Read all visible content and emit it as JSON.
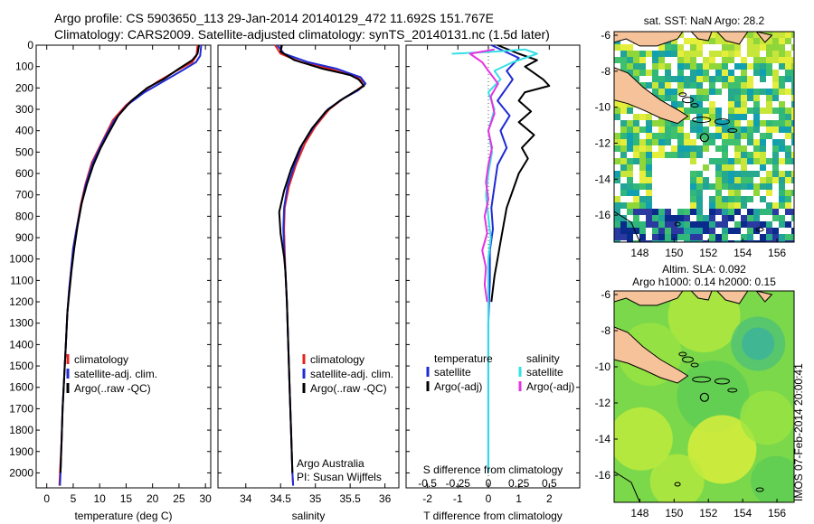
{
  "header": {
    "line1": "Argo profile: CS 5903650_113 29-Jan-2014 20140129_472 11.692S 151.767E",
    "line2": "Climatology: CARS2009. Satellite-adjusted climatology: synTS_20140131.nc (1.5d later)"
  },
  "stamp": "IMOS 07-Feb-2014 20:00:41",
  "colors": {
    "clim": "#e8231f",
    "sat": "#1f2bd6",
    "argo": "#000000",
    "sal_sat": "#35e0e6",
    "sal_argo": "#e633e0",
    "land": "#f5c29a",
    "sea_base": "#2fb87a"
  },
  "chart_data": [
    {
      "type": "line",
      "xlabel": "temperature (deg C)",
      "ylabel": "",
      "xlim": [
        -2,
        31
      ],
      "ylim": [
        2070,
        0
      ],
      "xticks": [
        "0",
        "5",
        "10",
        "15",
        "20",
        "25",
        "30"
      ],
      "yticks": [
        "0",
        "100",
        "200",
        "300",
        "400",
        "500",
        "600",
        "700",
        "800",
        "900",
        "1000",
        "1100",
        "1200",
        "1300",
        "1400",
        "1500",
        "1600",
        "1700",
        "1800",
        "1900",
        "2000"
      ],
      "legend": [
        "climatology",
        "satellite-adj. clim.",
        "Argo(..raw -QC)"
      ],
      "series": [
        {
          "name": "climatology",
          "color": "#e8231f",
          "points": [
            [
              28.5,
              0
            ],
            [
              28.3,
              50
            ],
            [
              27.5,
              80
            ],
            [
              24.5,
              120
            ],
            [
              21,
              170
            ],
            [
              18,
              220
            ],
            [
              15,
              280
            ],
            [
              12.5,
              350
            ],
            [
              10.5,
              450
            ],
            [
              8.5,
              550
            ],
            [
              7.3,
              650
            ],
            [
              6.4,
              750
            ],
            [
              5.7,
              850
            ],
            [
              5.0,
              950
            ],
            [
              4.6,
              1050
            ],
            [
              4.2,
              1150
            ],
            [
              3.9,
              1250
            ],
            [
              3.6,
              1400
            ],
            [
              3.3,
              1550
            ],
            [
              3.0,
              1700
            ],
            [
              2.8,
              1850
            ],
            [
              2.5,
              2000
            ],
            [
              2.4,
              2060
            ]
          ]
        },
        {
          "name": "satellite-adj. clim.",
          "color": "#1f2bd6",
          "points": [
            [
              29.2,
              0
            ],
            [
              29,
              50
            ],
            [
              28.2,
              80
            ],
            [
              25.5,
              120
            ],
            [
              22,
              170
            ],
            [
              18.5,
              220
            ],
            [
              15.2,
              280
            ],
            [
              12.8,
              350
            ],
            [
              10.6,
              450
            ],
            [
              8.7,
              550
            ],
            [
              7.4,
              650
            ],
            [
              6.5,
              750
            ],
            [
              5.7,
              850
            ],
            [
              5.0,
              950
            ],
            [
              4.6,
              1050
            ],
            [
              4.2,
              1150
            ],
            [
              3.9,
              1250
            ],
            [
              3.6,
              1400
            ],
            [
              3.3,
              1550
            ],
            [
              3.0,
              1700
            ],
            [
              2.8,
              1850
            ],
            [
              2.6,
              2000
            ],
            [
              2.5,
              2060
            ]
          ]
        },
        {
          "name": "Argo(..raw -QC)",
          "color": "#000000",
          "points": [
            [
              28.8,
              0
            ],
            [
              28.5,
              40
            ],
            [
              27.5,
              70
            ],
            [
              25,
              110
            ],
            [
              22,
              160
            ],
            [
              19,
              200
            ],
            [
              16,
              260
            ],
            [
              13.5,
              330
            ],
            [
              11.5,
              420
            ],
            [
              10.2,
              480
            ],
            [
              8.8,
              560
            ],
            [
              7.6,
              650
            ],
            [
              6.6,
              740
            ],
            [
              5.8,
              850
            ],
            [
              5.2,
              950
            ],
            [
              4.7,
              1050
            ],
            [
              4.3,
              1150
            ],
            [
              3.9,
              1250
            ],
            [
              3.6,
              1400
            ],
            [
              3.3,
              1550
            ],
            [
              3.0,
              1700
            ],
            [
              2.8,
              1850
            ],
            [
              2.6,
              2000
            ]
          ]
        }
      ]
    },
    {
      "type": "line",
      "xlabel": "salinity",
      "xlim": [
        33.6,
        36.2
      ],
      "ylim": [
        2070,
        0
      ],
      "xticks": [
        "34",
        "34.5",
        "35",
        "35.5",
        "36"
      ],
      "legend": [
        "climatology",
        "satellite-adj. clim.",
        "Argo(..raw -QC)"
      ],
      "annotation": [
        "Argo Australia",
        "PI: Susan Wijffels"
      ],
      "series": [
        {
          "name": "climatology",
          "color": "#e8231f",
          "points": [
            [
              34.42,
              0
            ],
            [
              34.5,
              40
            ],
            [
              34.8,
              80
            ],
            [
              35.2,
              110
            ],
            [
              35.6,
              150
            ],
            [
              35.72,
              180
            ],
            [
              35.6,
              210
            ],
            [
              35.4,
              250
            ],
            [
              35.2,
              300
            ],
            [
              35.0,
              380
            ],
            [
              34.85,
              460
            ],
            [
              34.72,
              560
            ],
            [
              34.62,
              660
            ],
            [
              34.56,
              760
            ],
            [
              34.55,
              860
            ],
            [
              34.56,
              960
            ],
            [
              34.57,
              1060
            ],
            [
              34.59,
              1200
            ],
            [
              34.61,
              1400
            ],
            [
              34.63,
              1600
            ],
            [
              34.65,
              1800
            ],
            [
              34.67,
              2000
            ],
            [
              34.68,
              2060
            ]
          ]
        },
        {
          "name": "satellite-adj. clim.",
          "color": "#1f2bd6",
          "points": [
            [
              34.45,
              0
            ],
            [
              34.55,
              40
            ],
            [
              34.9,
              80
            ],
            [
              35.3,
              110
            ],
            [
              35.65,
              150
            ],
            [
              35.72,
              180
            ],
            [
              35.62,
              210
            ],
            [
              35.4,
              250
            ],
            [
              35.18,
              300
            ],
            [
              34.98,
              380
            ],
            [
              34.82,
              460
            ],
            [
              34.7,
              560
            ],
            [
              34.6,
              660
            ],
            [
              34.55,
              760
            ],
            [
              34.54,
              860
            ],
            [
              34.55,
              960
            ],
            [
              34.57,
              1060
            ],
            [
              34.59,
              1200
            ],
            [
              34.61,
              1400
            ],
            [
              34.63,
              1600
            ],
            [
              34.65,
              1800
            ],
            [
              34.67,
              2000
            ],
            [
              34.68,
              2060
            ]
          ]
        },
        {
          "name": "Argo(..raw -QC)",
          "color": "#000000",
          "points": [
            [
              34.52,
              0
            ],
            [
              34.5,
              30
            ],
            [
              34.7,
              70
            ],
            [
              35.1,
              110
            ],
            [
              35.5,
              140
            ],
            [
              35.62,
              160
            ],
            [
              35.7,
              190
            ],
            [
              35.55,
              220
            ],
            [
              35.35,
              260
            ],
            [
              35.15,
              310
            ],
            [
              34.95,
              390
            ],
            [
              34.78,
              480
            ],
            [
              34.65,
              580
            ],
            [
              34.55,
              680
            ],
            [
              34.48,
              780
            ],
            [
              34.5,
              880
            ],
            [
              34.55,
              990
            ],
            [
              34.57,
              1060
            ],
            [
              34.59,
              1200
            ],
            [
              34.61,
              1400
            ],
            [
              34.63,
              1600
            ],
            [
              34.65,
              1800
            ],
            [
              34.67,
              2000
            ]
          ]
        }
      ]
    },
    {
      "type": "line",
      "xlabel": "T difference from climatology",
      "xlabel2": "S difference from climatology",
      "xlim": [
        -2.7,
        3
      ],
      "xlim_s": [
        -0.675,
        0.75
      ],
      "ylim": [
        2070,
        0
      ],
      "xticks": [
        "-2",
        "-1",
        "0",
        "1",
        "2"
      ],
      "xticks_s": [
        "-0.5",
        "-0.25",
        "0",
        "0.25",
        "0.5"
      ],
      "legend_left_title": "temperature",
      "legend_right_title": "salinity",
      "legend_left": [
        "satellite",
        "Argo(-adj)"
      ],
      "legend_right": [
        "satellite",
        "Argo(-adj)"
      ],
      "series": [
        {
          "name": "temperature satellite",
          "color": "#1f2bd6",
          "points": [
            [
              0.1,
              0
            ],
            [
              0.7,
              40
            ],
            [
              1.0,
              60
            ],
            [
              0.8,
              90
            ],
            [
              0.6,
              120
            ],
            [
              0.8,
              160
            ],
            [
              0.6,
              200
            ],
            [
              0.3,
              260
            ],
            [
              0.7,
              330
            ],
            [
              0.4,
              400
            ],
            [
              0.6,
              480
            ],
            [
              0.3,
              560
            ],
            [
              0.2,
              660
            ],
            [
              0.1,
              760
            ],
            [
              0.15,
              860
            ],
            [
              0.05,
              960
            ],
            [
              0.05,
              1100
            ],
            [
              0,
              1300
            ],
            [
              0,
              1600
            ],
            [
              0,
              2000
            ]
          ]
        },
        {
          "name": "temperature Argo(-adj)",
          "color": "#000000",
          "points": [
            [
              0.3,
              0
            ],
            [
              1.0,
              40
            ],
            [
              1.6,
              70
            ],
            [
              1.2,
              100
            ],
            [
              1.8,
              160
            ],
            [
              2.0,
              190
            ],
            [
              1.2,
              220
            ],
            [
              1.0,
              260
            ],
            [
              1.4,
              310
            ],
            [
              1.0,
              360
            ],
            [
              1.5,
              420
            ],
            [
              1.1,
              480
            ],
            [
              1.3,
              530
            ],
            [
              1.0,
              600
            ],
            [
              0.8,
              680
            ],
            [
              0.6,
              760
            ],
            [
              0.5,
              840
            ],
            [
              0.4,
              920
            ],
            [
              0.3,
              1000
            ],
            [
              0.2,
              1080
            ],
            [
              0.1,
              1200
            ]
          ]
        },
        {
          "name": "salinity satellite",
          "color": "#35e0e6",
          "points": [
            [
              -0.3,
              40
            ],
            [
              0.05,
              30
            ],
            [
              0.3,
              20
            ],
            [
              0.4,
              40
            ],
            [
              0.2,
              80
            ],
            [
              0.05,
              120
            ],
            [
              0.1,
              160
            ],
            [
              0.0,
              220
            ],
            [
              0.05,
              300
            ],
            [
              0.0,
              400
            ],
            [
              0.03,
              500
            ],
            [
              0.0,
              600
            ],
            [
              -0.02,
              700
            ],
            [
              0.0,
              800
            ],
            [
              0.02,
              900
            ],
            [
              0.0,
              1000
            ],
            [
              0.0,
              1200
            ],
            [
              0.0,
              1500
            ],
            [
              0.0,
              1800
            ],
            [
              0.0,
              2000
            ]
          ]
        },
        {
          "name": "salinity Argo(-adj)",
          "color": "#e633e0",
          "points": [
            [
              0.05,
              20
            ],
            [
              -0.15,
              40
            ],
            [
              -0.05,
              80
            ],
            [
              0.0,
              120
            ],
            [
              0.08,
              180
            ],
            [
              0.02,
              240
            ],
            [
              0.05,
              320
            ],
            [
              0.0,
              400
            ],
            [
              0.03,
              480
            ],
            [
              0.0,
              560
            ],
            [
              -0.02,
              640
            ],
            [
              0.0,
              720
            ],
            [
              -0.03,
              800
            ],
            [
              -0.01,
              880
            ],
            [
              -0.05,
              960
            ],
            [
              -0.02,
              1040
            ],
            [
              -0.03,
              1120
            ],
            [
              -0.01,
              1200
            ]
          ]
        }
      ]
    },
    {
      "type": "heatmap",
      "title": "sat. SST: NaN Argo: 28.2",
      "xlim": [
        146.5,
        157
      ],
      "ylim": [
        -17.5,
        -5.8
      ],
      "xticks": [
        "148",
        "150",
        "152",
        "154",
        "156"
      ],
      "yticks": [
        "-6",
        "-8",
        "-10",
        "-12",
        "-14",
        "-16"
      ],
      "marker": [
        151.77,
        -11.69
      ]
    },
    {
      "type": "heatmap",
      "title_line1": "Altim. SLA: 0.092",
      "title_line2": "Argo h1000: 0.14 h2000: 0.15",
      "xlim": [
        146.5,
        157
      ],
      "ylim": [
        -17.5,
        -5.8
      ],
      "xticks": [
        "148",
        "150",
        "152",
        "154",
        "156"
      ],
      "yticks": [
        "-6",
        "-8",
        "-10",
        "-12",
        "-14",
        "-16"
      ],
      "marker": [
        151.77,
        -11.69
      ]
    }
  ]
}
